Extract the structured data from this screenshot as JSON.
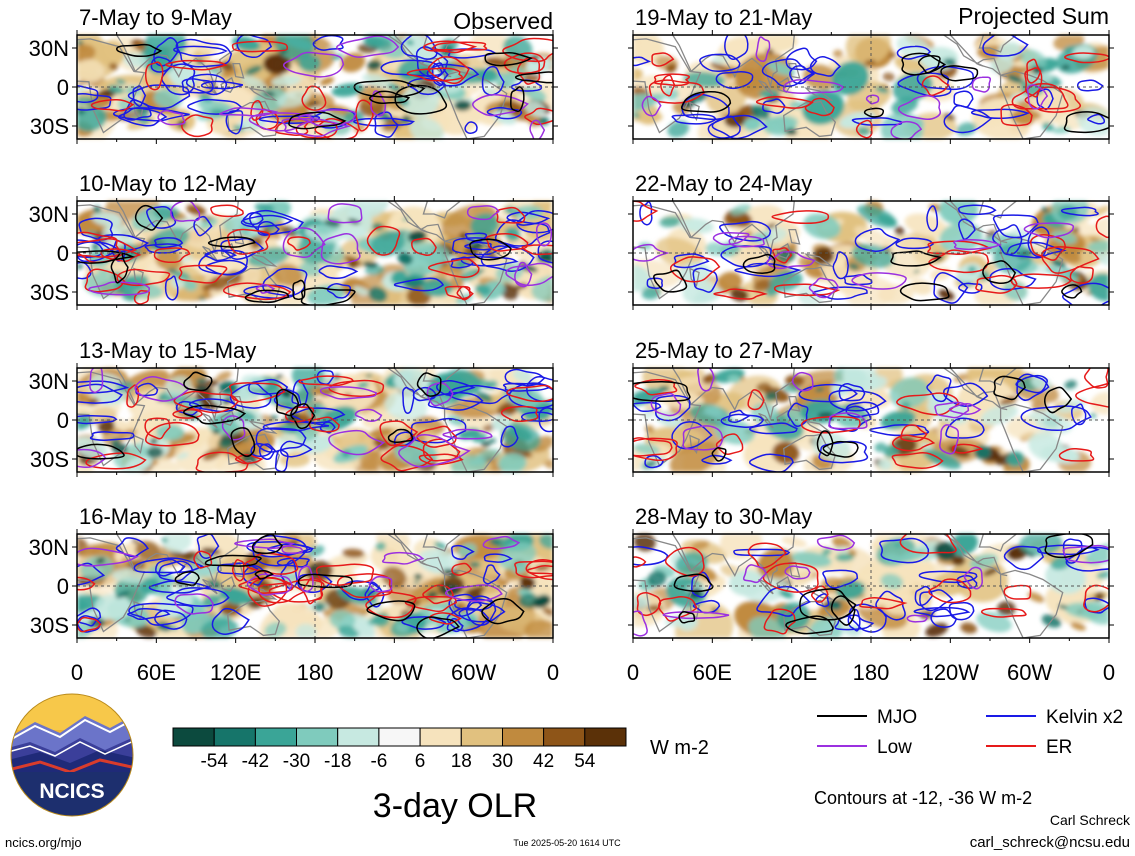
{
  "chart_data": {
    "type": "heatmap",
    "title": "3-day OLR",
    "unit": "W m-2",
    "colorbar": {
      "tick_labels": [
        "-54",
        "-42",
        "-30",
        "-18",
        "-6",
        "6",
        "18",
        "30",
        "42",
        "54"
      ],
      "colors": [
        "#0c4a3e",
        "#16756a",
        "#3aa597",
        "#7fcbbd",
        "#c7e9e1",
        "#f7f7f7",
        "#f6e3bd",
        "#e1c17f",
        "#c08a3e",
        "#8e5518",
        "#5b3108"
      ]
    },
    "x_tick_labels": [
      "0",
      "60E",
      "120E",
      "180",
      "120W",
      "60W",
      "0"
    ],
    "y_tick_labels": [
      "30N",
      "0",
      "30S"
    ],
    "column_headers": {
      "left": "Observed",
      "right": "Projected Sum"
    },
    "panels": {
      "left": [
        {
          "label": "7-May to 9-May"
        },
        {
          "label": "10-May to 12-May"
        },
        {
          "label": "13-May to 15-May"
        },
        {
          "label": "16-May to 18-May"
        }
      ],
      "right": [
        {
          "label": "19-May to 21-May"
        },
        {
          "label": "22-May to 24-May"
        },
        {
          "label": "25-May to 27-May"
        },
        {
          "label": "28-May to 30-May"
        }
      ]
    },
    "legend": [
      {
        "name": "MJO",
        "color": "#000000"
      },
      {
        "name": "Kelvin x2",
        "color": "#1a1ae6"
      },
      {
        "name": "Low",
        "color": "#9b30e0"
      },
      {
        "name": "ER",
        "color": "#e61a1a"
      }
    ],
    "contours_note": "Contours at -12, -36 W m-2"
  },
  "footer": {
    "site": "ncics.org/mjo",
    "timestamp": "Tue 2025-05-20 1614 UTC",
    "author": "Carl Schreck",
    "email": "carl_schreck@ncsu.edu",
    "logo_text": "NCICS"
  }
}
